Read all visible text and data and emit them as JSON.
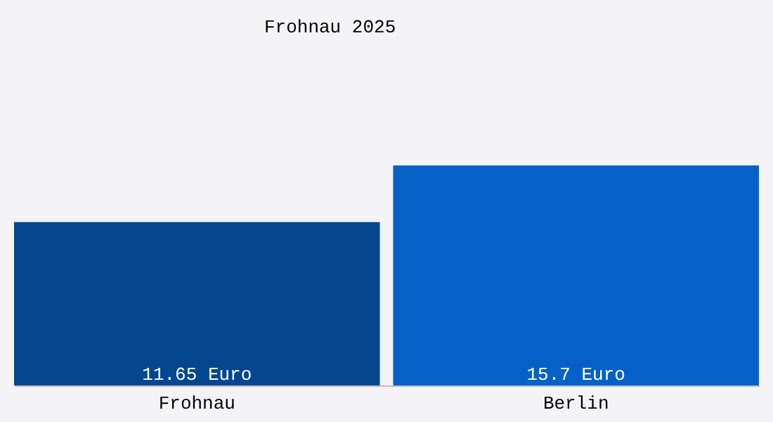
{
  "chart_data": {
    "type": "bar",
    "title": "Frohnau 2025",
    "categories": [
      "Frohnau",
      "Berlin"
    ],
    "values": [
      11.65,
      15.7
    ],
    "colors": [
      "#04478f",
      "#0561c8"
    ],
    "value_labels": [
      "11.65 Euro",
      "15.7 Euro"
    ],
    "ylim": [
      0,
      27.5
    ],
    "tick_labels": "x",
    "grid": false,
    "legend": false
  }
}
